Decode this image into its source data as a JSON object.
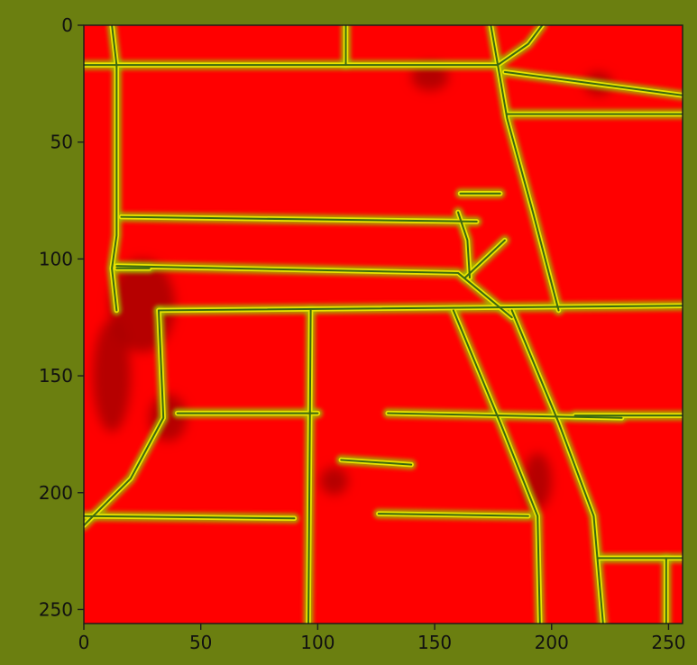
{
  "figure": {
    "background": "#6b7f10"
  },
  "chart_data": {
    "type": "heatmap",
    "title": "",
    "xlabel": "",
    "ylabel": "",
    "xlim": [
      0,
      256
    ],
    "ylim": [
      256,
      0
    ],
    "xticks": [
      0,
      50,
      100,
      150,
      200,
      250
    ],
    "yticks": [
      0,
      50,
      100,
      150,
      200,
      250
    ],
    "grid": false,
    "legend": "none",
    "colors": {
      "field": "#ff0000",
      "boundary_dark": "#3b6a10",
      "boundary_light": "#e8e200",
      "edge_blend": "#9ac400",
      "shadow": "#a40000"
    },
    "boundaries": [
      [
        [
          0,
          17
        ],
        [
          177,
          17
        ]
      ],
      [
        [
          177,
          17
        ],
        [
          190,
          8
        ],
        [
          196,
          0
        ]
      ],
      [
        [
          174,
          0
        ],
        [
          177,
          17
        ]
      ],
      [
        [
          112,
          0
        ],
        [
          112,
          17
        ]
      ],
      [
        [
          12,
          0
        ],
        [
          14,
          17
        ],
        [
          14,
          90
        ],
        [
          12,
          104
        ],
        [
          14,
          122
        ]
      ],
      [
        [
          177,
          17
        ],
        [
          181,
          40
        ],
        [
          192,
          80
        ],
        [
          203,
          122
        ]
      ],
      [
        [
          181,
          38
        ],
        [
          256,
          38
        ]
      ],
      [
        [
          180,
          20
        ],
        [
          256,
          30
        ]
      ],
      [
        [
          16,
          82
        ],
        [
          168,
          84
        ]
      ],
      [
        [
          160,
          80
        ],
        [
          164,
          92
        ],
        [
          165,
          108
        ]
      ],
      [
        [
          163,
          108
        ],
        [
          180,
          92
        ]
      ],
      [
        [
          161,
          72
        ],
        [
          178,
          72
        ]
      ],
      [
        [
          14,
          103
        ],
        [
          160,
          106
        ],
        [
          183,
          125
        ]
      ],
      [
        [
          32,
          122
        ],
        [
          256,
          120
        ]
      ],
      [
        [
          32,
          122
        ],
        [
          34,
          168
        ],
        [
          20,
          194
        ],
        [
          0,
          214
        ]
      ],
      [
        [
          14,
          104
        ],
        [
          28,
          104
        ]
      ],
      [
        [
          97,
          122
        ],
        [
          96,
          256
        ]
      ],
      [
        [
          158,
          122
        ],
        [
          178,
          170
        ],
        [
          194,
          210
        ],
        [
          195,
          256
        ]
      ],
      [
        [
          183,
          122
        ],
        [
          203,
          170
        ],
        [
          218,
          210
        ],
        [
          222,
          256
        ]
      ],
      [
        [
          220,
          228
        ],
        [
          256,
          228
        ]
      ],
      [
        [
          249,
          228
        ],
        [
          249,
          256
        ]
      ],
      [
        [
          40,
          166
        ],
        [
          100,
          166
        ]
      ],
      [
        [
          130,
          166
        ],
        [
          230,
          168
        ]
      ],
      [
        [
          210,
          167
        ],
        [
          256,
          167
        ]
      ],
      [
        [
          0,
          210
        ],
        [
          90,
          211
        ]
      ],
      [
        [
          110,
          186
        ],
        [
          140,
          188
        ]
      ],
      [
        [
          126,
          209
        ],
        [
          190,
          210
        ]
      ]
    ]
  }
}
